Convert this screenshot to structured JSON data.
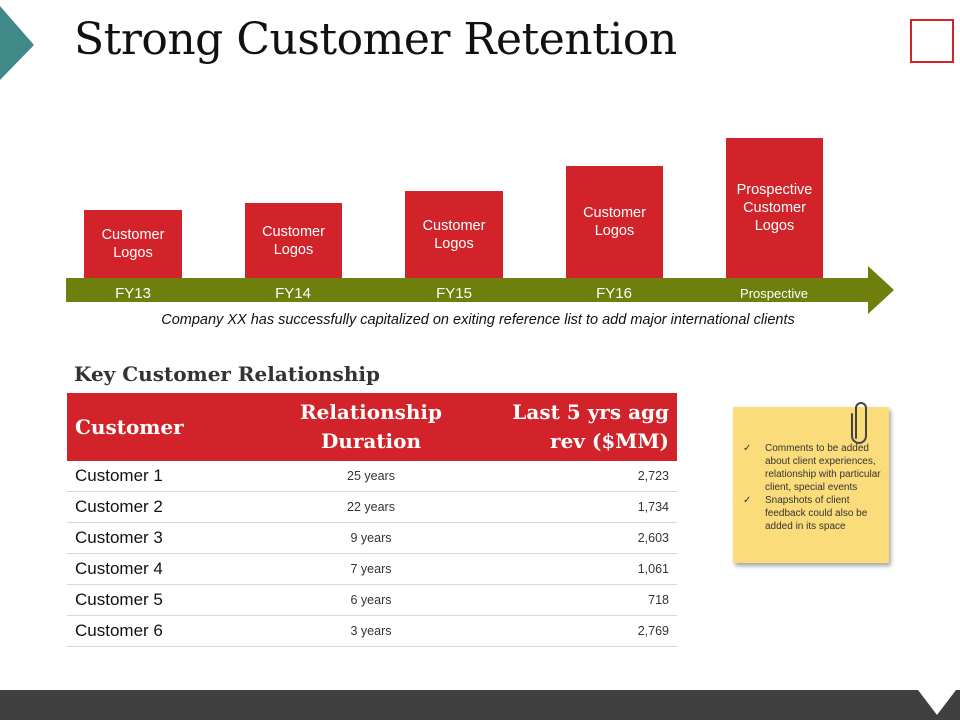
{
  "slide": {
    "title": "Strong Customer Retention",
    "caption": "Company XX has successfully capitalized on exiting reference list to add major international clients"
  },
  "timeline": {
    "bars": [
      {
        "label": "Customer Logos",
        "year": "FY13"
      },
      {
        "label": "Customer Logos",
        "year": "FY14"
      },
      {
        "label": "Customer Logos",
        "year": "FY15"
      },
      {
        "label": "Customer Logos",
        "year": "FY16"
      },
      {
        "label": "Prospective Customer Logos",
        "year": "Prospective"
      }
    ]
  },
  "relationship": {
    "heading": "Key Customer Relationship",
    "columns": [
      "Customer",
      "Relationship Duration",
      "Last 5 yrs agg rev ($MM)"
    ],
    "rows": [
      {
        "customer": "Customer 1",
        "duration": "25 years",
        "revenue": "2,723"
      },
      {
        "customer": "Customer 2",
        "duration": "22 years",
        "revenue": "1,734"
      },
      {
        "customer": "Customer 3",
        "duration": "9 years",
        "revenue": "2,603"
      },
      {
        "customer": "Customer 4",
        "duration": "7 years",
        "revenue": "1,061"
      },
      {
        "customer": "Customer 5",
        "duration": "6 years",
        "revenue": "718"
      },
      {
        "customer": "Customer 6",
        "duration": "3 years",
        "revenue": "2,769"
      }
    ]
  },
  "note": {
    "items": [
      "Comments to be added about client experiences, relationship with particular client, special events",
      "Snapshots of client feedback could also be added in its space"
    ],
    "check_glyph": "✓"
  },
  "icons": {
    "corner_triangle": "corner-triangle-icon",
    "corner_square": "square-outline-icon",
    "paperclip": "paperclip-icon",
    "footer_notch": "down-arrow-notch-icon",
    "timeline_arrow": "right-arrow-icon"
  },
  "colors": {
    "accent_red": "#d2232a",
    "teal": "#3f8a88",
    "olive": "#6f7f0e",
    "note_yellow": "#fbdc7a",
    "footer": "#404040"
  }
}
